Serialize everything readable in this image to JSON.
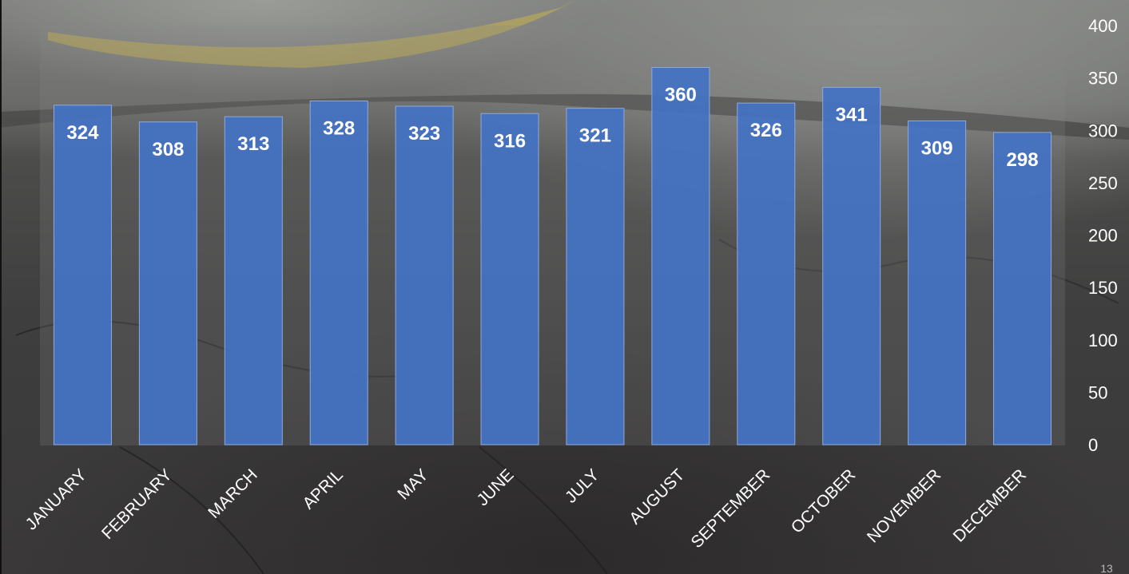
{
  "chart_data": {
    "type": "bar",
    "categories": [
      "JANUARY",
      "FEBRUARY",
      "MARCH",
      "APRIL",
      "MAY",
      "JUNE",
      "JULY",
      "AUGUST",
      "SEPTEMBER",
      "OCTOBER",
      "NOVEMBER",
      "DECEMBER"
    ],
    "values": [
      324,
      308,
      313,
      328,
      323,
      316,
      321,
      360,
      326,
      341,
      309,
      298
    ],
    "ylim": [
      0,
      400
    ],
    "yticks": [
      "0",
      "50",
      "100",
      "150",
      "200",
      "250",
      "300",
      "350",
      "400"
    ],
    "y_axis_position": "right",
    "grid": false,
    "data_labels": true,
    "bar_color": "#4472c4",
    "title": "",
    "xlabel": "",
    "ylabel": ""
  },
  "page_number": "13"
}
